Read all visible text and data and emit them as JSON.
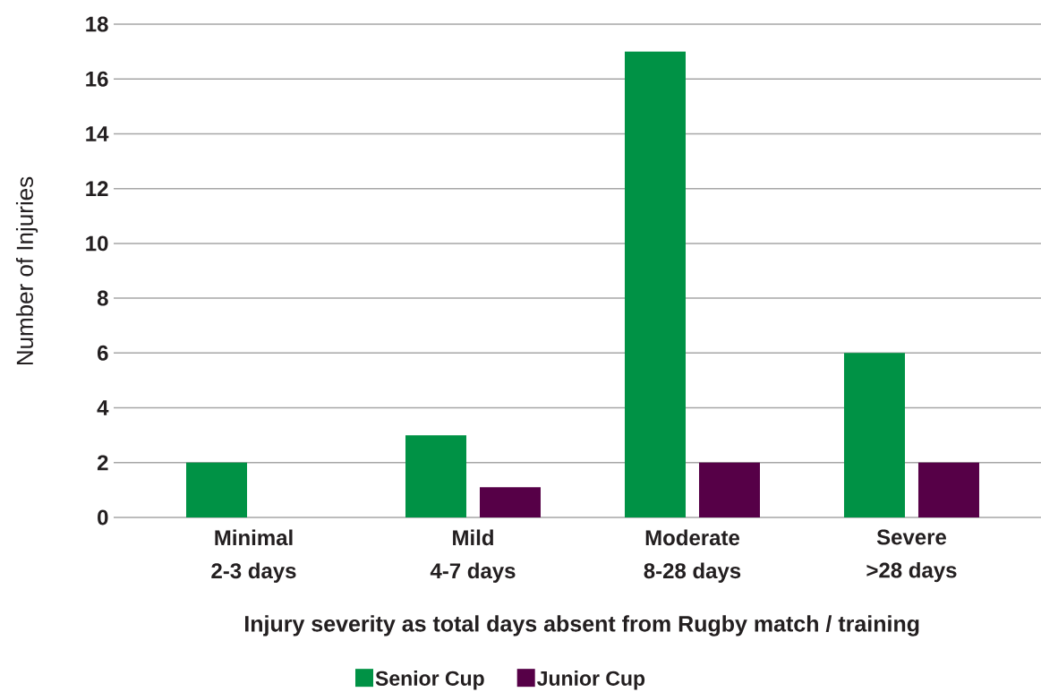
{
  "chart_data": {
    "type": "bar",
    "xlabel": "Injury severity as total days absent from Rugby match / training",
    "ylabel": "Number of Injuries",
    "categories": [
      "Minimal\n2-3 days",
      "Mild\n4-7 days",
      "Moderate\n8-28 days",
      "Severe\n>28 days"
    ],
    "series": [
      {
        "name": "Senior Cup",
        "color": "#009245",
        "values": [
          2,
          3,
          17,
          6
        ]
      },
      {
        "name": "Junior Cup",
        "color": "#560047",
        "values": [
          0,
          1.1,
          2,
          2
        ]
      }
    ],
    "ylim": [
      0,
      18
    ],
    "yticks": [
      0,
      2,
      4,
      6,
      8,
      10,
      12,
      14,
      16,
      18
    ],
    "grid": "y",
    "legend": "bottom"
  }
}
